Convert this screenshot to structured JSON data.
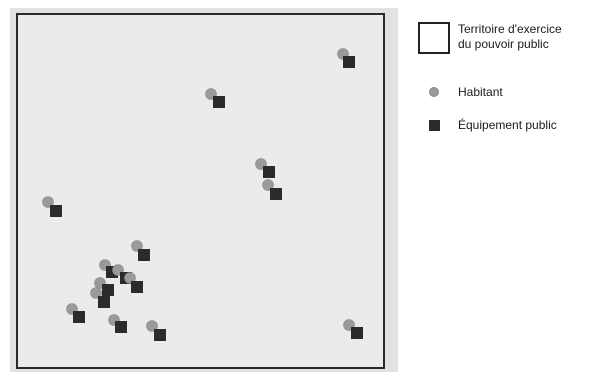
{
  "legend": {
    "territory_line1": "Territoire d'exercice",
    "territory_line2": "du pouvoir public",
    "habitant": "Habitant",
    "equipement": "Équipement public"
  },
  "colors": {
    "territory_fill": "#ebebeb",
    "territory_border": "#2a2a2a",
    "outer_frame": "#e0e0e0",
    "habitant": "#9a9a9a",
    "equipement": "#2b2b2b"
  },
  "pairs_count_note": null
}
